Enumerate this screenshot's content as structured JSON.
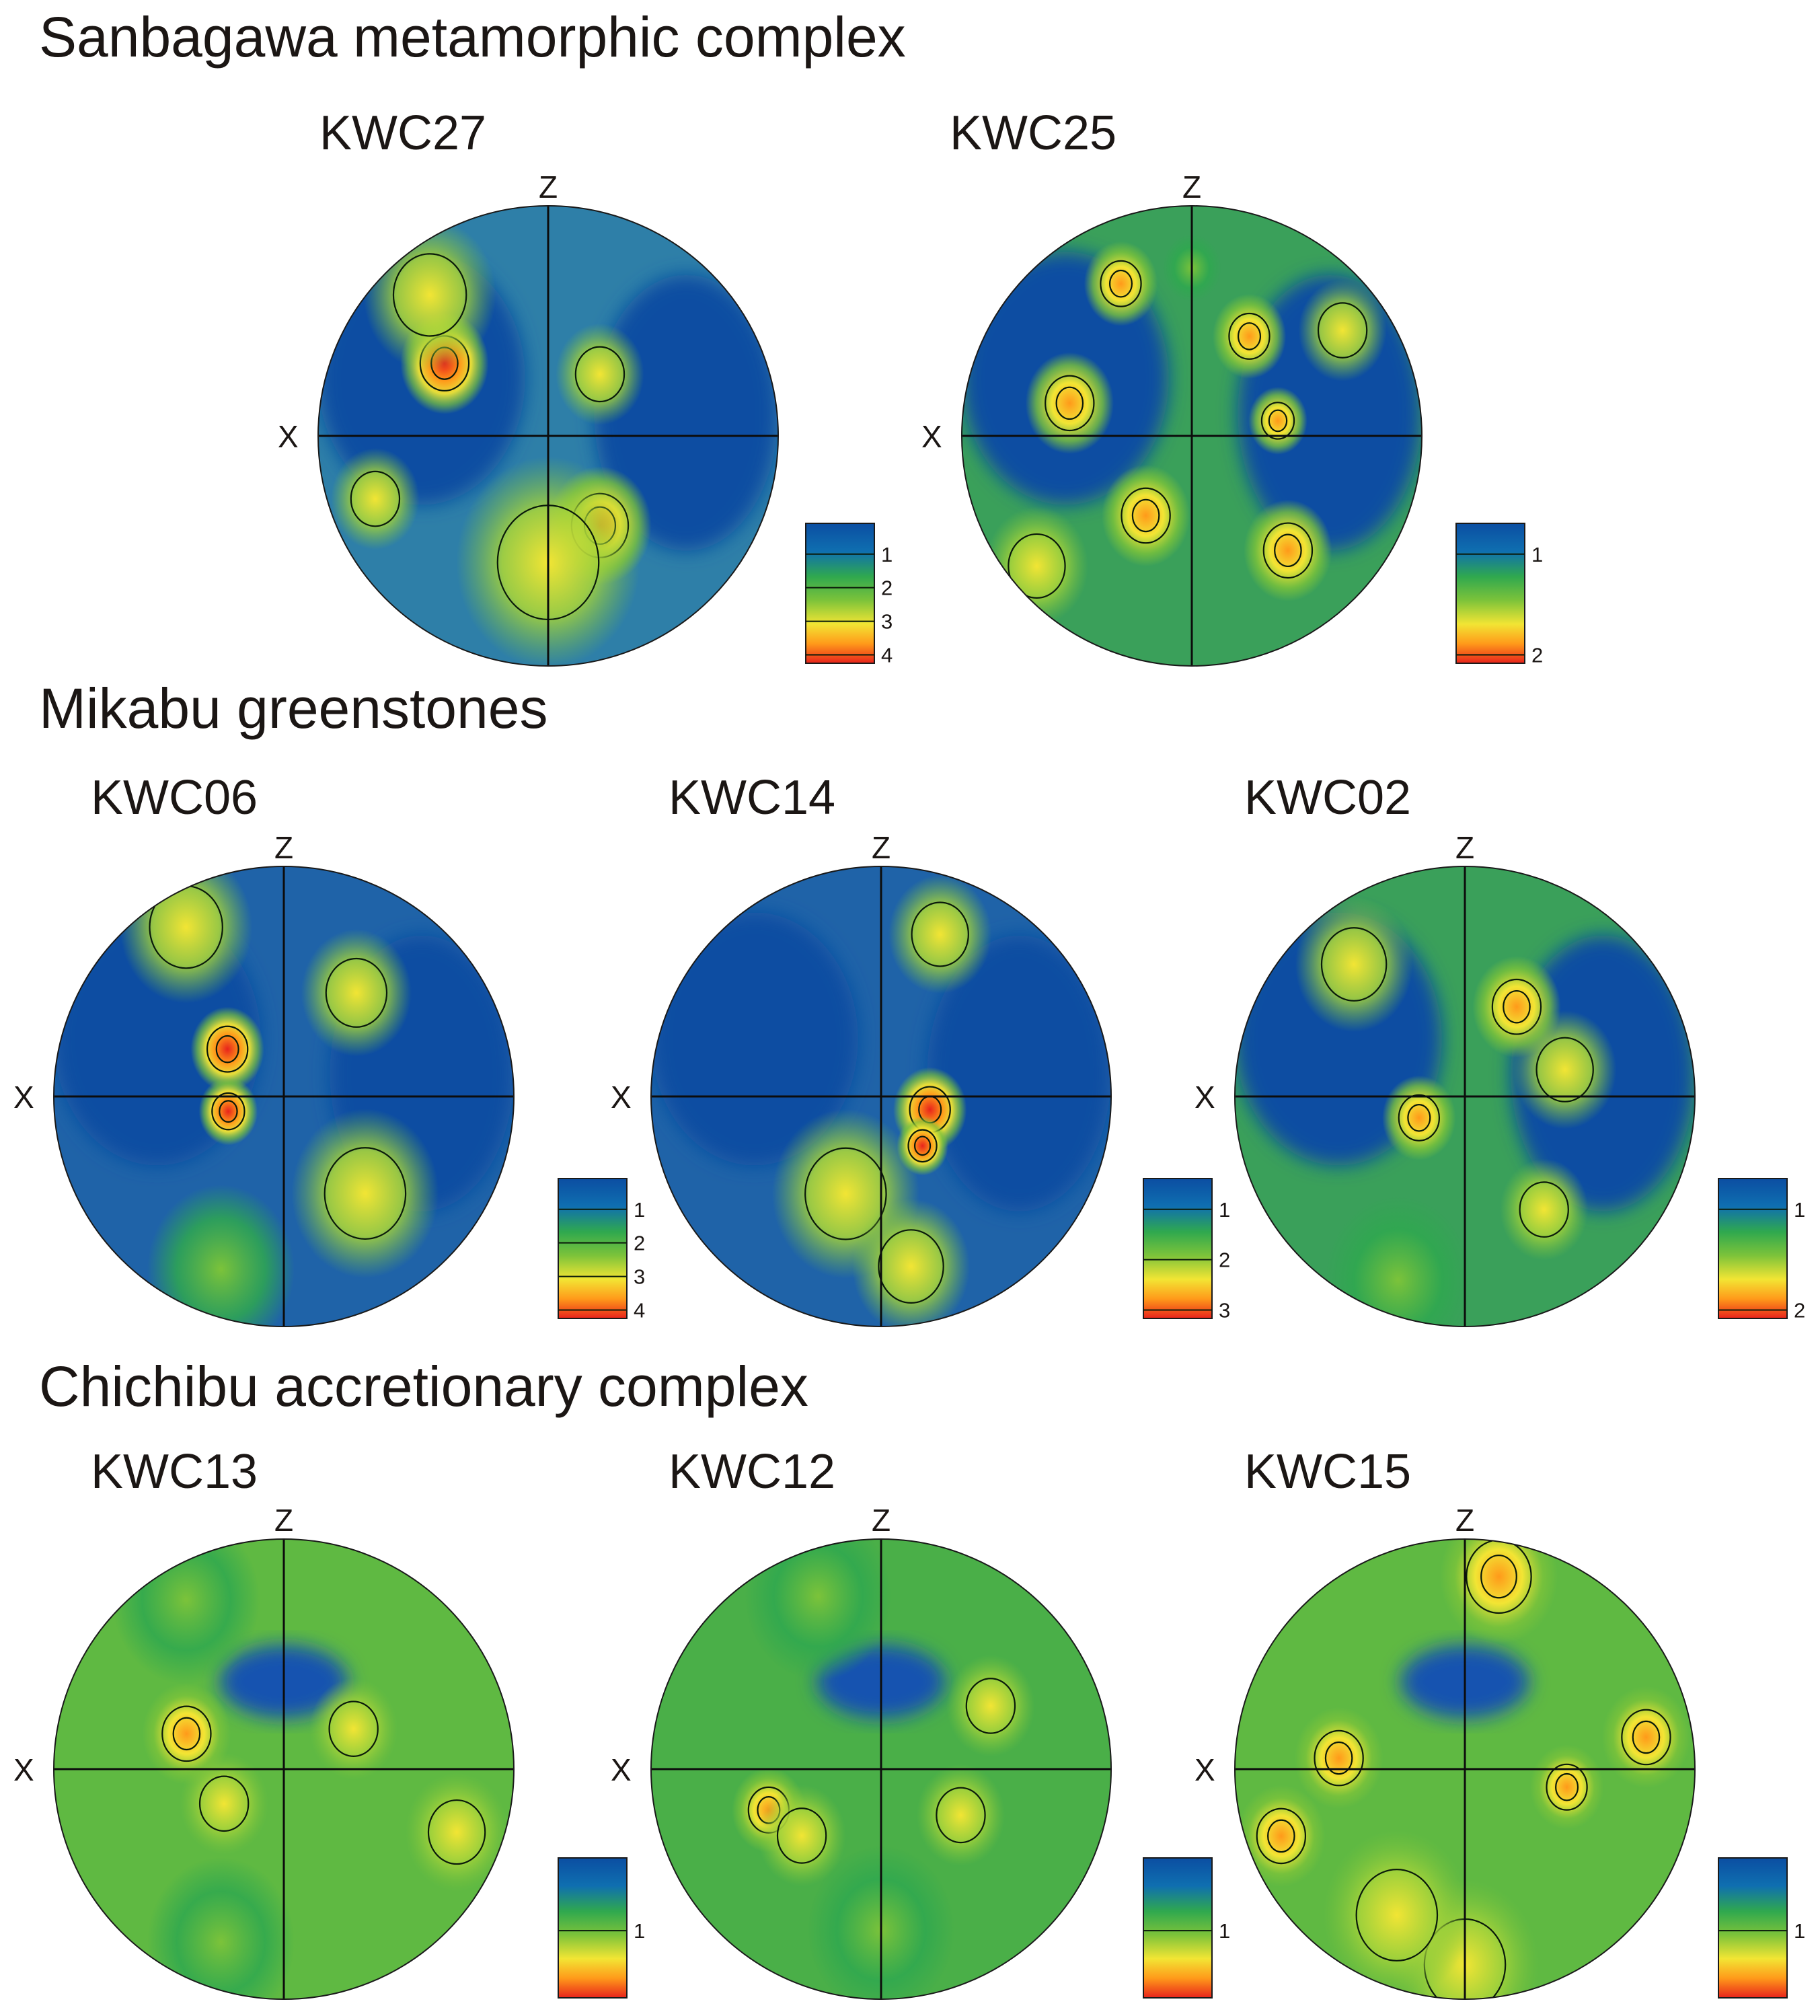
{
  "figure": {
    "colors": {
      "low": "#0b4ea2",
      "mid_low": "#2fa84f",
      "mid": "#7cc33a",
      "mid_high": "#f2e534",
      "high": "#ff9a1a",
      "max": "#e8231b",
      "contour": "#0a1a0a"
    },
    "axis_labels": {
      "z": "Z",
      "x": "X"
    },
    "sections": [
      {
        "title": "Sanbagawa metamorphic complex",
        "samples": [
          {
            "name": "KWC27",
            "legend": [
              "1",
              "2",
              "3",
              "4"
            ],
            "hotspots": [
              {
                "az": 305,
                "r": 0.55,
                "level": 4,
                "size": 0.12
              },
              {
                "az": 40,
                "r": 0.35,
                "level": 2,
                "size": 0.12
              },
              {
                "az": 150,
                "r": 0.45,
                "level": 2.5,
                "size": 0.14
              },
              {
                "az": 250,
                "r": 0.8,
                "level": 2,
                "size": 0.12
              },
              {
                "az": 180,
                "r": 0.55,
                "level": 2,
                "size": 0.25
              },
              {
                "az": 320,
                "r": 0.8,
                "level": 2,
                "size": 0.18
              }
            ]
          },
          {
            "name": "KWC25",
            "legend": [
              "1",
              "2"
            ],
            "hotspots": [
              {
                "az": 335,
                "r": 0.73,
                "level": 2.5,
                "size": 0.1
              },
              {
                "az": 0,
                "r": 0.73,
                "level": 1.8,
                "size": 0.08
              },
              {
                "az": 30,
                "r": 0.5,
                "level": 2.5,
                "size": 0.1
              },
              {
                "az": 285,
                "r": 0.55,
                "level": 2.4,
                "size": 0.12
              },
              {
                "az": 80,
                "r": 0.38,
                "level": 2.6,
                "size": 0.08
              },
              {
                "az": 210,
                "r": 0.4,
                "level": 2.4,
                "size": 0.12
              },
              {
                "az": 140,
                "r": 0.65,
                "level": 2.6,
                "size": 0.12
              },
              {
                "az": 230,
                "r": 0.88,
                "level": 2,
                "size": 0.14
              },
              {
                "az": 55,
                "r": 0.8,
                "level": 2,
                "size": 0.12
              }
            ]
          }
        ]
      },
      {
        "title": "Mikabu greenstones",
        "samples": [
          {
            "name": "KWC06",
            "legend": [
              "1",
              "2",
              "3",
              "4"
            ],
            "hotspots": [
              {
                "az": 310,
                "r": 0.32,
                "level": 3,
                "size": 0.1
              },
              {
                "az": 255,
                "r": 0.25,
                "level": 4,
                "size": 0.08
              },
              {
                "az": 35,
                "r": 0.55,
                "level": 2,
                "size": 0.15
              },
              {
                "az": 140,
                "r": 0.55,
                "level": 2,
                "size": 0.2
              },
              {
                "az": 330,
                "r": 0.85,
                "level": 2,
                "size": 0.18
              },
              {
                "az": 200,
                "r": 0.8,
                "level": 1.8,
                "size": 0.2
              }
            ]
          },
          {
            "name": "KWC14",
            "legend": [
              "1",
              "2",
              "3"
            ],
            "hotspots": [
              {
                "az": 105,
                "r": 0.22,
                "level": 3.2,
                "size": 0.1
              },
              {
                "az": 140,
                "r": 0.28,
                "level": 3,
                "size": 0.07
              },
              {
                "az": 20,
                "r": 0.75,
                "level": 2.2,
                "size": 0.14
              },
              {
                "az": 200,
                "r": 0.45,
                "level": 2,
                "size": 0.2
              },
              {
                "az": 170,
                "r": 0.75,
                "level": 2,
                "size": 0.16
              }
            ]
          },
          {
            "name": "KWC02",
            "legend": [
              "1",
              "2"
            ],
            "hotspots": [
              {
                "az": 30,
                "r": 0.45,
                "level": 2.5,
                "size": 0.12
              },
              {
                "az": 245,
                "r": 0.22,
                "level": 2.6,
                "size": 0.1
              },
              {
                "az": 145,
                "r": 0.6,
                "level": 2.2,
                "size": 0.12
              },
              {
                "az": 320,
                "r": 0.75,
                "level": 2,
                "size": 0.16
              },
              {
                "az": 75,
                "r": 0.45,
                "level": 2,
                "size": 0.14
              },
              {
                "az": 200,
                "r": 0.85,
                "level": 1.8,
                "size": 0.2
              }
            ]
          }
        ]
      },
      {
        "title": "Chichibu accretionary complex",
        "samples": [
          {
            "name": "KWC13",
            "legend": [
              "1"
            ],
            "hotspots": [
              {
                "az": 290,
                "r": 0.45,
                "level": 2.5,
                "size": 0.12
              },
              {
                "az": 60,
                "r": 0.35,
                "level": 2.3,
                "size": 0.12
              },
              {
                "az": 110,
                "r": 0.8,
                "level": 2.3,
                "size": 0.14
              },
              {
                "az": 240,
                "r": 0.3,
                "level": 2.2,
                "size": 0.12
              },
              {
                "az": 200,
                "r": 0.8,
                "level": 1.8,
                "size": 0.2
              },
              {
                "az": 330,
                "r": 0.85,
                "level": 1.8,
                "size": 0.2
              }
            ]
          },
          {
            "name": "KWC12",
            "legend": [
              "1"
            ],
            "hotspots": [
              {
                "az": 250,
                "r": 0.52,
                "level": 2.6,
                "size": 0.1
              },
              {
                "az": 230,
                "r": 0.45,
                "level": 2.3,
                "size": 0.12
              },
              {
                "az": 120,
                "r": 0.4,
                "level": 2,
                "size": 0.12
              },
              {
                "az": 60,
                "r": 0.55,
                "level": 2,
                "size": 0.12
              },
              {
                "az": 180,
                "r": 0.7,
                "level": 1.8,
                "size": 0.2
              },
              {
                "az": 340,
                "r": 0.8,
                "level": 1.8,
                "size": 0.2
              }
            ]
          },
          {
            "name": "KWC15",
            "legend": [
              "1"
            ],
            "hotspots": [
              {
                "az": 10,
                "r": 0.85,
                "level": 2.6,
                "size": 0.16
              },
              {
                "az": 275,
                "r": 0.55,
                "level": 2.5,
                "size": 0.12
              },
              {
                "az": 250,
                "r": 0.85,
                "level": 2.4,
                "size": 0.12
              },
              {
                "az": 100,
                "r": 0.45,
                "level": 2.5,
                "size": 0.1
              },
              {
                "az": 80,
                "r": 0.8,
                "level": 2.4,
                "size": 0.12
              },
              {
                "az": 180,
                "r": 0.85,
                "level": 2.3,
                "size": 0.2
              },
              {
                "az": 205,
                "r": 0.7,
                "level": 2,
                "size": 0.2
              }
            ]
          }
        ]
      }
    ]
  }
}
